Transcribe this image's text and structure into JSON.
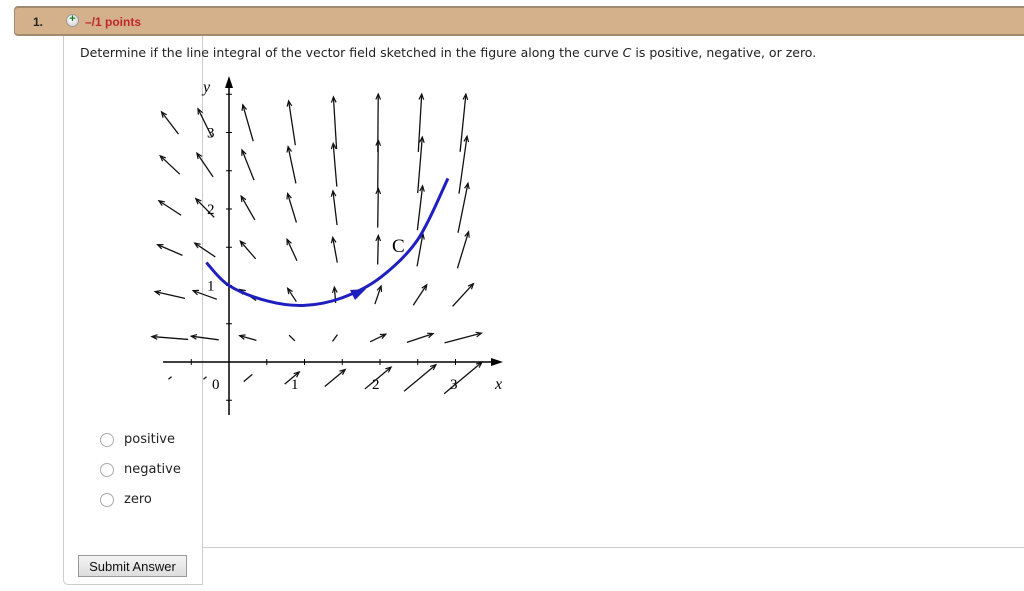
{
  "header": {
    "number": "1.",
    "plus_icon": "+",
    "points": "–/1 points",
    "color": "#d4b18b"
  },
  "question": {
    "before": "Determine if the line integral of the vector field sketched in the figure along the curve ",
    "var": "C",
    "after": " is positive, negative, or zero."
  },
  "figure": {
    "x_label": "x",
    "y_label": "y",
    "x_ticks": [
      "0",
      "1",
      "2",
      "3"
    ],
    "y_ticks": [
      "1",
      "2",
      "3"
    ],
    "curve_label": "C",
    "curve_color": "#1f1fc0",
    "curve_points": [
      [
        -0.3,
        1.3
      ],
      [
        0,
        1.0
      ],
      [
        0.5,
        0.8
      ],
      [
        1.0,
        0.74
      ],
      [
        1.5,
        0.84
      ],
      [
        2.0,
        1.1
      ],
      [
        2.5,
        1.6
      ],
      [
        2.9,
        2.4
      ]
    ]
  },
  "options": [
    {
      "label": "positive"
    },
    {
      "label": "negative"
    },
    {
      "label": "zero"
    }
  ],
  "submit_label": "Submit Answer"
}
